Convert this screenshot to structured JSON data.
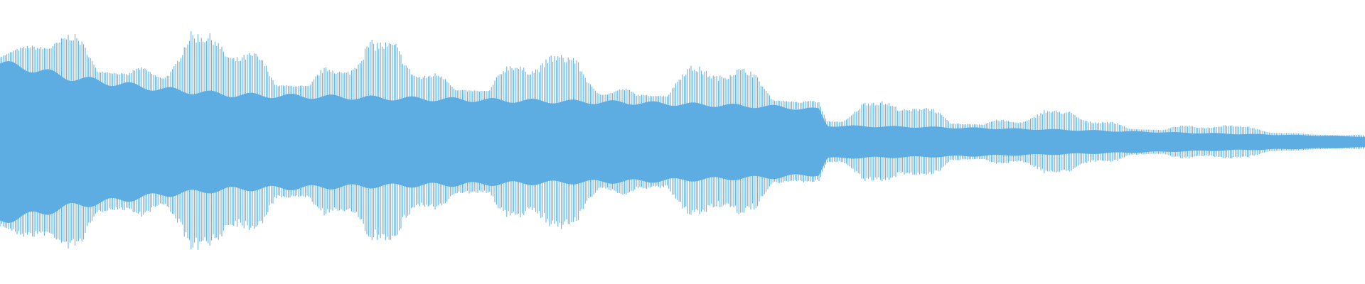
{
  "chart_data": {
    "type": "waveform",
    "title": "",
    "xlabel": "",
    "ylabel": "",
    "xlim": [
      0,
      100
    ],
    "ylim": [
      -1,
      1
    ],
    "grid": false,
    "legend": "none",
    "color": "#5dade2",
    "background": "#ffffff",
    "envelope": {
      "x": [
        0,
        2,
        5,
        8,
        12,
        17,
        26,
        36,
        47,
        57,
        60,
        60.6,
        68,
        78,
        86,
        100
      ],
      "peak": [
        0.62,
        0.68,
        0.78,
        0.8,
        0.8,
        0.75,
        0.73,
        0.65,
        0.58,
        0.5,
        0.42,
        0.3,
        0.28,
        0.22,
        0.15,
        0.05
      ],
      "core": [
        0.58,
        0.55,
        0.48,
        0.44,
        0.39,
        0.35,
        0.33,
        0.31,
        0.29,
        0.26,
        0.24,
        0.12,
        0.11,
        0.09,
        0.07,
        0.04
      ]
    }
  }
}
